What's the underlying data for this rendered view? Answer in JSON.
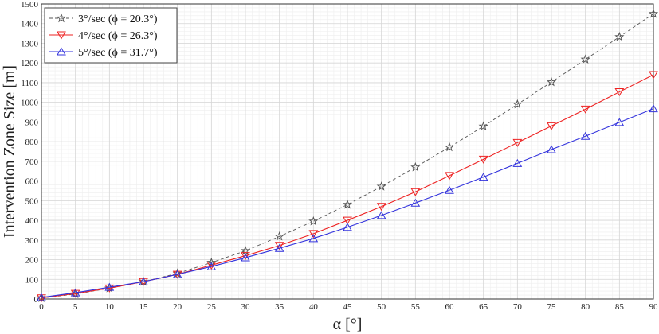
{
  "chart_data": {
    "type": "line",
    "xlabel": "α [°]",
    "ylabel": "Intervention Zone Size [m]",
    "xlim": [
      0,
      90
    ],
    "ylim": [
      0,
      1500
    ],
    "xticks": [
      0,
      5,
      10,
      15,
      20,
      25,
      30,
      35,
      40,
      45,
      50,
      55,
      60,
      65,
      70,
      75,
      80,
      85,
      90
    ],
    "yticks": [
      0,
      100,
      200,
      300,
      400,
      500,
      600,
      700,
      800,
      900,
      1000,
      1100,
      1200,
      1300,
      1400,
      1500
    ],
    "grid": true,
    "legend_position": "top-left",
    "x": [
      0,
      5,
      10,
      15,
      20,
      25,
      30,
      35,
      40,
      45,
      50,
      55,
      60,
      65,
      70,
      75,
      80,
      85,
      90
    ],
    "series": [
      {
        "name": "3°/sec (ϕ = 20.3°)",
        "color": "#555555",
        "marker": "star",
        "linestyle": "dashed",
        "values": [
          5,
          25,
          55,
          88,
          130,
          185,
          245,
          318,
          395,
          480,
          572,
          670,
          772,
          878,
          990,
          1103,
          1218,
          1333,
          1450
        ]
      },
      {
        "name": "4°/sec (ϕ = 26.3°)",
        "color": "#ee2222",
        "marker": "triangle-down",
        "linestyle": "solid",
        "values": [
          5,
          28,
          55,
          88,
          125,
          172,
          220,
          272,
          332,
          400,
          470,
          545,
          627,
          710,
          795,
          880,
          965,
          1053,
          1140
        ]
      },
      {
        "name": "5°/sec (ϕ = 31.7°)",
        "color": "#3333dd",
        "marker": "triangle-up",
        "linestyle": "solid",
        "values": [
          8,
          32,
          60,
          88,
          125,
          165,
          210,
          258,
          308,
          365,
          425,
          488,
          553,
          620,
          690,
          760,
          828,
          898,
          968
        ]
      }
    ]
  }
}
